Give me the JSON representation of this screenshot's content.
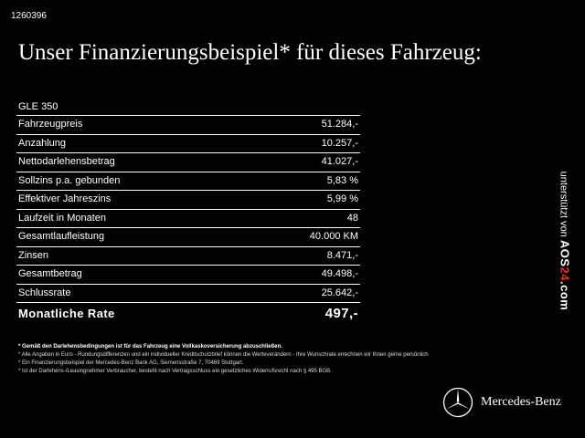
{
  "reference_number": "1260396",
  "title": "Unser Finanzierungsbeispiel* für dieses Fahrzeug:",
  "model": "GLE 350",
  "rows": [
    {
      "label": "Fahrzeugpreis",
      "value": "51.284,-"
    },
    {
      "label": "Anzahlung",
      "value": "10.257,-"
    },
    {
      "label": "Nettodarlehensbetrag",
      "value": "41.027,-"
    },
    {
      "label": "Sollzins p.a. gebunden",
      "value": "5,83 %"
    },
    {
      "label": "Effektiver Jahreszins",
      "value": "5,99 %"
    },
    {
      "label": "Laufzeit in Monaten",
      "value": "48"
    },
    {
      "label": "Gesamtlaufleistung",
      "value": "40.000 KM"
    },
    {
      "label": "Zinsen",
      "value": "8.471,-"
    },
    {
      "label": "Gesamtbetrag",
      "value": "49.498,-"
    },
    {
      "label": "Schlussrate",
      "value": "25.642,-"
    }
  ],
  "monthly_rate": {
    "label": "Monatliche Rate",
    "value": "497,-"
  },
  "footnotes": [
    "* Gemäß den Darlehensbedingungen ist für das Fahrzeug eine Vollkaskoversicherung abzuschließen.",
    "* Alle Angaben in Euro - Rundungsdifferenzen und ein individueller Kreditschutzbrief können die Werteverändern - Ihre Wunschrate errechnen wir Ihnen gerne persönlich",
    "* Ein Finanzierungsbeispiel der Mercedes-Benz Bank AG, Siemensstraße 7, 70469 Stuttgart.",
    "* Ist der Darlehens-/Leasingnehmer Verbraucher, besteht nach Vertragsschluss ein gesetzliches Widerrufsrecht nach § 495 BGB."
  ],
  "side_text": {
    "prefix": "unterstützt von",
    "brand_main": "AOS",
    "brand_accent": "24",
    "brand_suffix": ".com"
  },
  "brand_name": "Mercedes-Benz"
}
